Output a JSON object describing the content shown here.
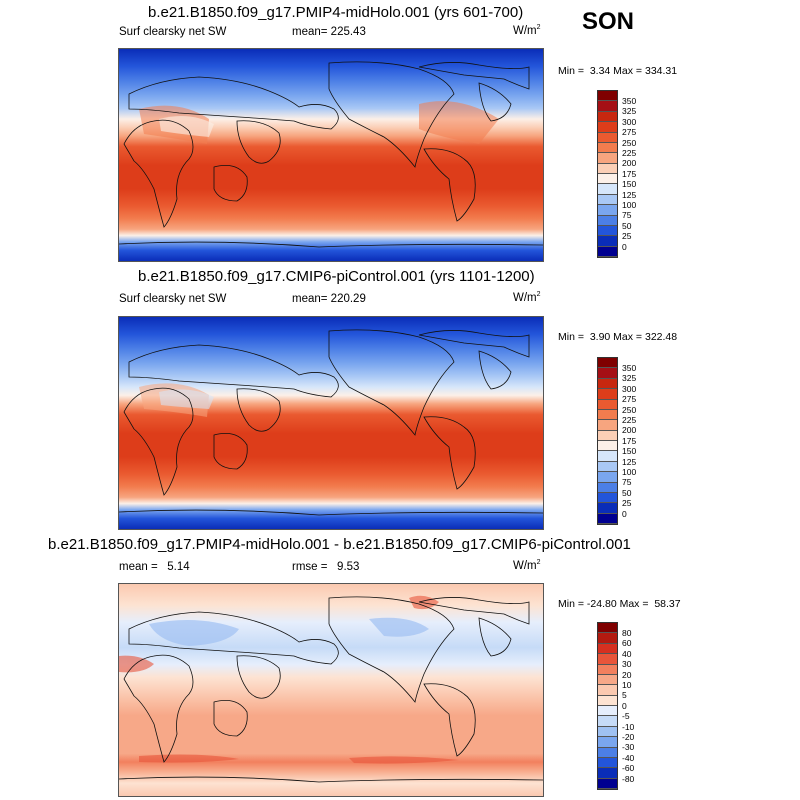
{
  "season": "SON",
  "panels": [
    {
      "title": "b.e21.B1850.f09_g17.PMIP4-midHolo.001 (yrs 601-700)",
      "left_label": "Surf clearsky net SW",
      "mid_label": "mean= 225.43",
      "units": "W/m",
      "units_sup": "2",
      "min_label": "Min =",
      "min_value": "3.34",
      "max_label": "Max =",
      "max_value": "334.31",
      "colorbar": {
        "labels": [
          "350",
          "325",
          "300",
          "275",
          "250",
          "225",
          "200",
          "175",
          "150",
          "125",
          "100",
          "75",
          "50",
          "25",
          "0"
        ],
        "colors": [
          "#7f0000",
          "#a50f15",
          "#c8270f",
          "#dd3d1a",
          "#ea5a30",
          "#f27c4e",
          "#f7a57f",
          "#fbcfb6",
          "#fcf0e8",
          "#d6e6fa",
          "#a9c8f5",
          "#7aa6ef",
          "#4c7fe6",
          "#2355da",
          "#0a2db8",
          "#000090"
        ]
      }
    },
    {
      "title": "b.e21.B1850.f09_g17.CMIP6-piControl.001 (yrs 1101-1200)",
      "left_label": "Surf clearsky net SW",
      "mid_label": "mean= 220.29",
      "units": "W/m",
      "units_sup": "2",
      "min_label": "Min =",
      "min_value": "3.90",
      "max_label": "Max =",
      "max_value": "322.48",
      "colorbar": {
        "labels": [
          "350",
          "325",
          "300",
          "275",
          "250",
          "225",
          "200",
          "175",
          "150",
          "125",
          "100",
          "75",
          "50",
          "25",
          "0"
        ],
        "colors": [
          "#7f0000",
          "#a50f15",
          "#c8270f",
          "#dd3d1a",
          "#ea5a30",
          "#f27c4e",
          "#f7a57f",
          "#fbcfb6",
          "#fcf0e8",
          "#d6e6fa",
          "#a9c8f5",
          "#7aa6ef",
          "#4c7fe6",
          "#2355da",
          "#0a2db8",
          "#000090"
        ]
      }
    },
    {
      "title": "b.e21.B1850.f09_g17.PMIP4-midHolo.001 - b.e21.B1850.f09_g17.CMIP6-piControl.001",
      "left_label": "mean =   5.14",
      "mid_label": "rmse =   9.53",
      "units": "W/m",
      "units_sup": "2",
      "min_label": "Min =",
      "min_value": "-24.80",
      "max_label": "Max =",
      "max_value": "58.37",
      "colorbar": {
        "labels": [
          "80",
          "60",
          "40",
          "30",
          "20",
          "10",
          "5",
          "0",
          "-5",
          "-10",
          "-20",
          "-30",
          "-40",
          "-60",
          "-80"
        ],
        "colors": [
          "#7f0000",
          "#b31a10",
          "#d63020",
          "#e8553a",
          "#f2805e",
          "#f7a888",
          "#fbc9b0",
          "#fde3d2",
          "#e6eefc",
          "#c6dbf7",
          "#9fc1f2",
          "#7aa6ef",
          "#4c7fe6",
          "#2355da",
          "#0a2db8",
          "#000090"
        ]
      }
    }
  ]
}
